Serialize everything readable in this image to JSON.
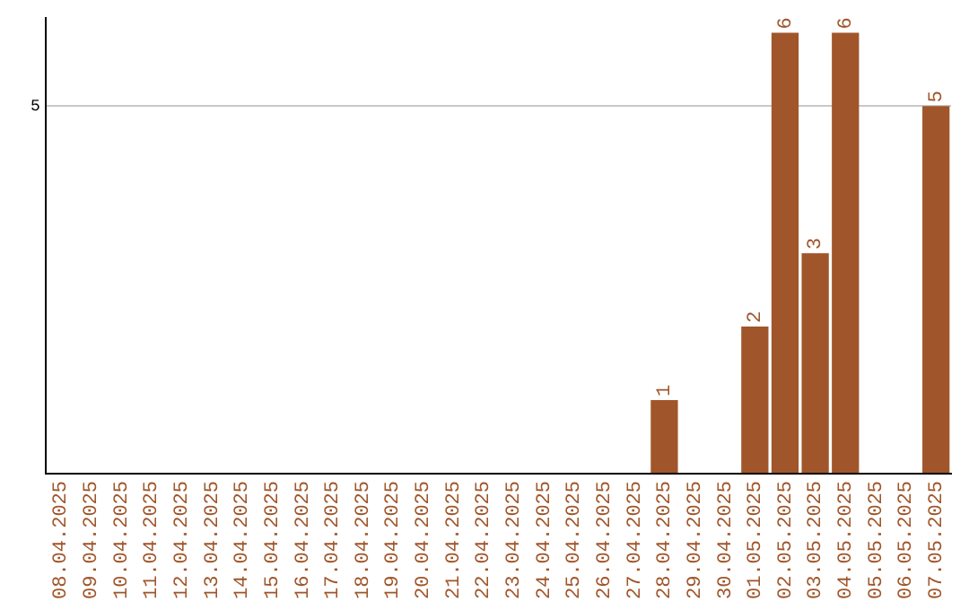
{
  "chart_data": {
    "type": "bar",
    "categories": [
      "08.04.2025",
      "09.04.2025",
      "10.04.2025",
      "11.04.2025",
      "12.04.2025",
      "13.04.2025",
      "14.04.2025",
      "15.04.2025",
      "16.04.2025",
      "17.04.2025",
      "18.04.2025",
      "19.04.2025",
      "20.04.2025",
      "21.04.2025",
      "22.04.2025",
      "23.04.2025",
      "24.04.2025",
      "25.04.2025",
      "26.04.2025",
      "27.04.2025",
      "28.04.2025",
      "29.04.2025",
      "30.04.2025",
      "01.05.2025",
      "02.05.2025",
      "03.05.2025",
      "04.05.2025",
      "05.05.2025",
      "06.05.2025",
      "07.05.2025"
    ],
    "values": [
      null,
      null,
      null,
      null,
      null,
      null,
      null,
      null,
      null,
      null,
      null,
      null,
      null,
      null,
      null,
      null,
      null,
      null,
      null,
      null,
      1,
      null,
      null,
      2,
      6,
      3,
      6,
      null,
      null,
      5
    ],
    "data_labels": true,
    "color": "#a0562a",
    "ylim": [
      0,
      6.2
    ],
    "yticks": [
      {
        "value": 0,
        "label": null
      },
      5
    ],
    "grid": "y",
    "legend": false
  }
}
